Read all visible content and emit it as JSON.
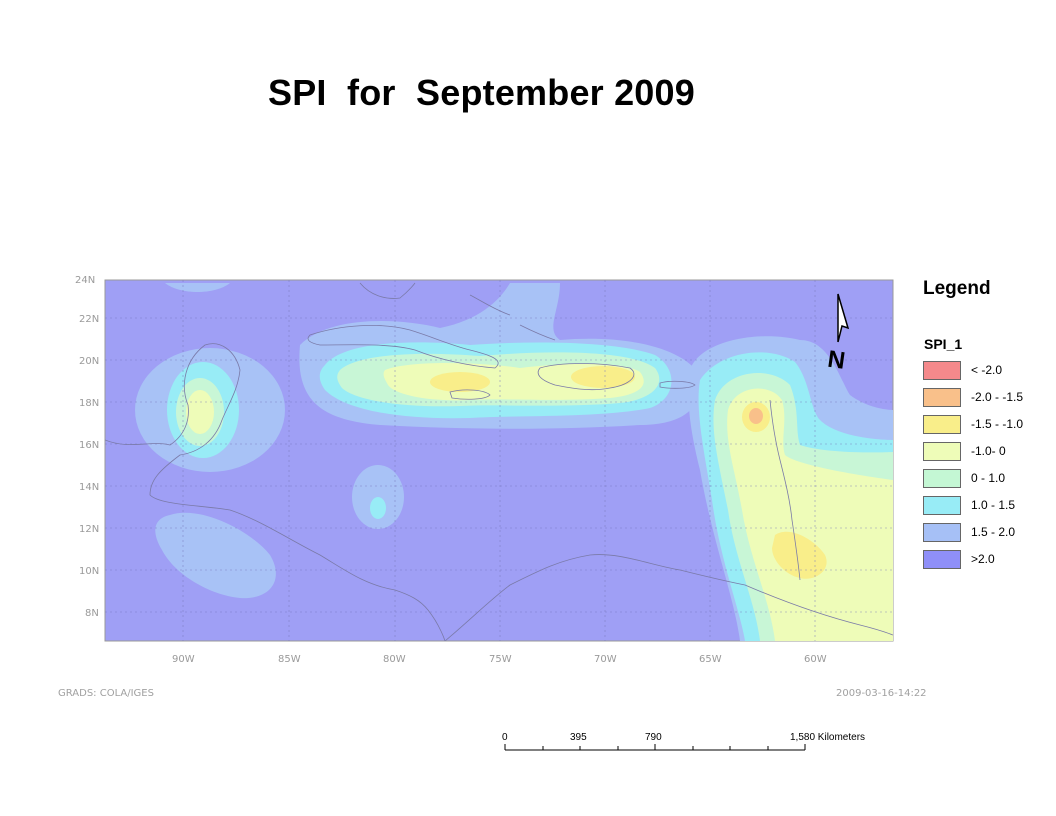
{
  "title": "SPI  for  September 2009",
  "map": {
    "lat_labels": [
      "24N",
      "22N",
      "20N",
      "18N",
      "16N",
      "14N",
      "12N",
      "10N",
      "8N"
    ],
    "lon_labels": [
      "90W",
      "85W",
      "80W",
      "75W",
      "70W",
      "65W",
      "60W"
    ],
    "footer_left": "GRADS: COLA/IGES",
    "footer_right": "2009-03-16-14:22",
    "north_arrow_label": "N"
  },
  "legend": {
    "title": "Legend",
    "field": "SPI_1",
    "classes": [
      {
        "label": "< -2.0",
        "color": "#f4898b"
      },
      {
        "label": "-2.0 - -1.5",
        "color": "#f9c08a"
      },
      {
        "label": "-1.5 - -1.0",
        "color": "#f9ee8a"
      },
      {
        "label": "-1.0- 0",
        "color": "#eefcb8"
      },
      {
        "label": "0 - 1.0",
        "color": "#c4f7d4"
      },
      {
        "label": "1.0 - 1.5",
        "color": "#98ecf6"
      },
      {
        "label": "1.5 - 2.0",
        "color": "#a6c0f6"
      },
      {
        "label": ">2.0",
        "color": "#8f8ff8"
      }
    ]
  },
  "scalebar": {
    "ticks": [
      "0",
      "395",
      "790",
      "1,580 Kilometers"
    ]
  }
}
